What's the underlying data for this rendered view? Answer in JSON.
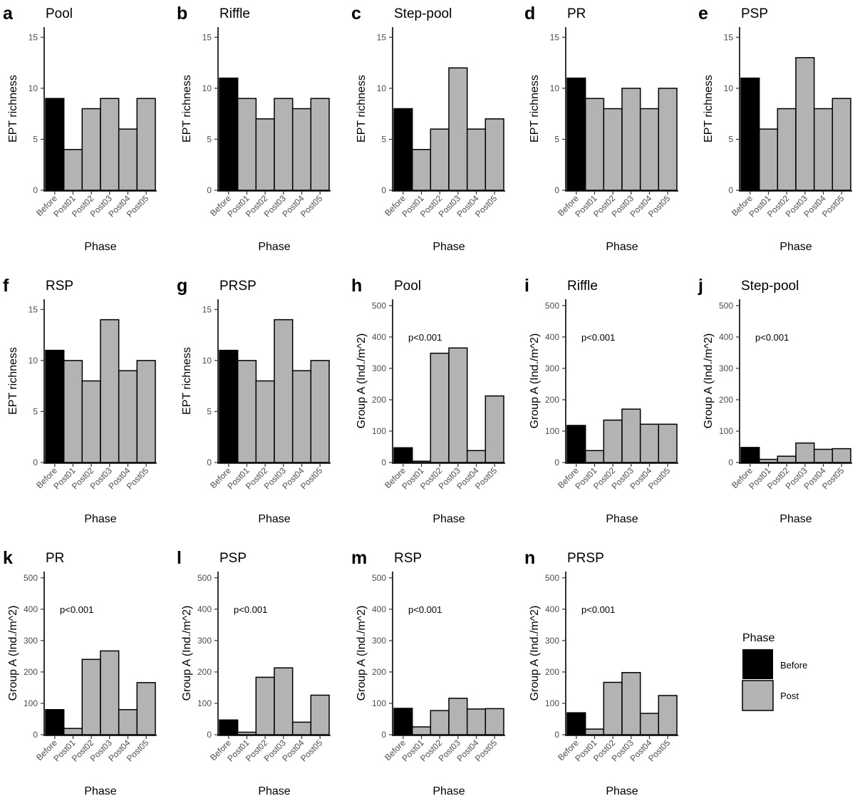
{
  "chart_data": [
    {
      "panel": "a",
      "type": "bar",
      "title": "Pool",
      "xlabel": "Phase",
      "ylabel": "EPT richness",
      "categories": [
        "Before",
        "Post01",
        "Post02",
        "Post03",
        "Post04",
        "Post05"
      ],
      "values": [
        9,
        4,
        8,
        9,
        6,
        9
      ],
      "ylim": [
        0,
        16
      ],
      "yticks": [
        0,
        5,
        10,
        15
      ],
      "annotation": ""
    },
    {
      "panel": "b",
      "type": "bar",
      "title": "Riffle",
      "xlabel": "Phase",
      "ylabel": "EPT richness",
      "categories": [
        "Before",
        "Post01",
        "Post02",
        "Post03",
        "Post04",
        "Post05"
      ],
      "values": [
        11,
        9,
        7,
        9,
        8,
        9
      ],
      "ylim": [
        0,
        16
      ],
      "yticks": [
        0,
        5,
        10,
        15
      ],
      "annotation": ""
    },
    {
      "panel": "c",
      "type": "bar",
      "title": "Step-pool",
      "xlabel": "Phase",
      "ylabel": "EPT richness",
      "categories": [
        "Before",
        "Post01",
        "Post02",
        "Post03",
        "Post04",
        "Post05"
      ],
      "values": [
        8,
        4,
        6,
        12,
        6,
        7
      ],
      "ylim": [
        0,
        16
      ],
      "yticks": [
        0,
        5,
        10,
        15
      ],
      "annotation": ""
    },
    {
      "panel": "d",
      "type": "bar",
      "title": "PR",
      "xlabel": "Phase",
      "ylabel": "EPT richness",
      "categories": [
        "Before",
        "Post01",
        "Post02",
        "Post03",
        "Post04",
        "Post05"
      ],
      "values": [
        11,
        9,
        8,
        10,
        8,
        10
      ],
      "ylim": [
        0,
        16
      ],
      "yticks": [
        0,
        5,
        10,
        15
      ],
      "annotation": ""
    },
    {
      "panel": "e",
      "type": "bar",
      "title": "PSP",
      "xlabel": "Phase",
      "ylabel": "EPT richness",
      "categories": [
        "Before",
        "Post01",
        "Post02",
        "Post03",
        "Post04",
        "Post05"
      ],
      "values": [
        11,
        6,
        8,
        13,
        8,
        9
      ],
      "ylim": [
        0,
        16
      ],
      "yticks": [
        0,
        5,
        10,
        15
      ],
      "annotation": ""
    },
    {
      "panel": "f",
      "type": "bar",
      "title": "RSP",
      "xlabel": "Phase",
      "ylabel": "EPT richness",
      "categories": [
        "Before",
        "Post01",
        "Post02",
        "Post03",
        "Post04",
        "Post05"
      ],
      "values": [
        11,
        10,
        8,
        14,
        9,
        10
      ],
      "ylim": [
        0,
        16
      ],
      "yticks": [
        0,
        5,
        10,
        15
      ],
      "annotation": ""
    },
    {
      "panel": "g",
      "type": "bar",
      "title": "PRSP",
      "xlabel": "Phase",
      "ylabel": "EPT richness",
      "categories": [
        "Before",
        "Post01",
        "Post02",
        "Post03",
        "Post04",
        "Post05"
      ],
      "values": [
        11,
        10,
        8,
        14,
        9,
        10
      ],
      "ylim": [
        0,
        16
      ],
      "yticks": [
        0,
        5,
        10,
        15
      ],
      "annotation": ""
    },
    {
      "panel": "h",
      "type": "bar",
      "title": "Pool",
      "xlabel": "Phase",
      "ylabel": "Group A (Ind./m^2)",
      "categories": [
        "Before",
        "Post01",
        "Post02",
        "Post03",
        "Post04",
        "Post05"
      ],
      "values": [
        47,
        4,
        348,
        365,
        38,
        212
      ],
      "ylim": [
        0,
        520
      ],
      "yticks": [
        0,
        100,
        200,
        300,
        400,
        500
      ],
      "annotation": "p<0.001"
    },
    {
      "panel": "i",
      "type": "bar",
      "title": "Riffle",
      "xlabel": "Phase",
      "ylabel": "Group A (Ind./m^2)",
      "categories": [
        "Before",
        "Post01",
        "Post02",
        "Post03",
        "Post04",
        "Post05"
      ],
      "values": [
        118,
        38,
        135,
        170,
        122,
        122
      ],
      "ylim": [
        0,
        520
      ],
      "yticks": [
        0,
        100,
        200,
        300,
        400,
        500
      ],
      "annotation": "p<0.001"
    },
    {
      "panel": "j",
      "type": "bar",
      "title": "Step-pool",
      "xlabel": "Phase",
      "ylabel": "Group A (Ind./m^2)",
      "categories": [
        "Before",
        "Post01",
        "Post02",
        "Post03",
        "Post04",
        "Post05"
      ],
      "values": [
        48,
        10,
        20,
        62,
        42,
        44
      ],
      "ylim": [
        0,
        520
      ],
      "yticks": [
        0,
        100,
        200,
        300,
        400,
        500
      ],
      "annotation": "p<0.001"
    },
    {
      "panel": "k",
      "type": "bar",
      "title": "PR",
      "xlabel": "Phase",
      "ylabel": "Group A (Ind./m^2)",
      "categories": [
        "Before",
        "Post01",
        "Post02",
        "Post03",
        "Post04",
        "Post05"
      ],
      "values": [
        80,
        20,
        240,
        267,
        80,
        166
      ],
      "ylim": [
        0,
        520
      ],
      "yticks": [
        0,
        100,
        200,
        300,
        400,
        500
      ],
      "annotation": "p<0.001"
    },
    {
      "panel": "l",
      "type": "bar",
      "title": "PSP",
      "xlabel": "Phase",
      "ylabel": "Group A (Ind./m^2)",
      "categories": [
        "Before",
        "Post01",
        "Post02",
        "Post03",
        "Post04",
        "Post05"
      ],
      "values": [
        47,
        8,
        183,
        213,
        40,
        126
      ],
      "ylim": [
        0,
        520
      ],
      "yticks": [
        0,
        100,
        200,
        300,
        400,
        500
      ],
      "annotation": "p<0.001"
    },
    {
      "panel": "m",
      "type": "bar",
      "title": "RSP",
      "xlabel": "Phase",
      "ylabel": "Group A (Ind./m^2)",
      "categories": [
        "Before",
        "Post01",
        "Post02",
        "Post03",
        "Post04",
        "Post05"
      ],
      "values": [
        84,
        25,
        77,
        116,
        82,
        83
      ],
      "ylim": [
        0,
        520
      ],
      "yticks": [
        0,
        100,
        200,
        300,
        400,
        500
      ],
      "annotation": "p<0.001"
    },
    {
      "panel": "n",
      "type": "bar",
      "title": "PRSP",
      "xlabel": "Phase",
      "ylabel": "Group A (Ind./m^2)",
      "categories": [
        "Before",
        "Post01",
        "Post02",
        "Post03",
        "Post04",
        "Post05"
      ],
      "values": [
        70,
        18,
        167,
        198,
        68,
        125
      ],
      "ylim": [
        0,
        520
      ],
      "yticks": [
        0,
        100,
        200,
        300,
        400,
        500
      ],
      "annotation": "p<0.001"
    }
  ],
  "legend": {
    "title": "Phase",
    "placement": "right",
    "items": [
      {
        "label": "Before",
        "color": "#000000"
      },
      {
        "label": "Post",
        "color": "#b3b3b3"
      }
    ]
  },
  "colors": {
    "before": "#000000",
    "post": "#b3b3b3",
    "outline": "#000000",
    "tick_text": "#4d4d4d"
  }
}
